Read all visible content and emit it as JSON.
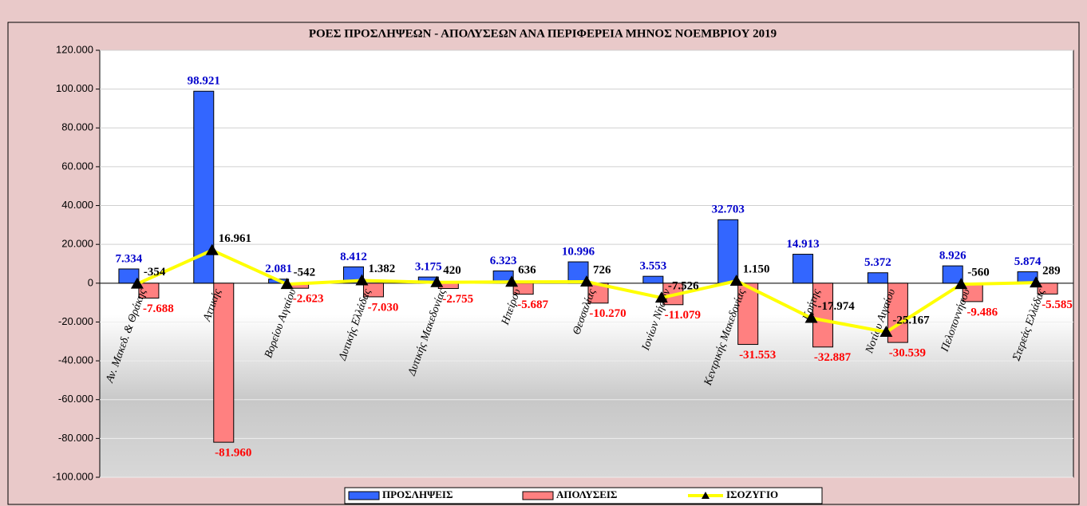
{
  "chart_data": {
    "type": "bar",
    "title": "ΡΟΕΣ ΠΡΟΣΛΗΨΕΩΝ - ΑΠΟΛΥΣΕΩΝ ΑΝΑ ΠΕΡΙΦΕΡΕΙΑ ΜΗΝΟΣ  ΝΟΕΜΒΡΙΟΥ  2019",
    "categories": [
      "Αν. Μακεδ. & Θράκης",
      "Αττικής",
      "Βορείου Αιγαίου",
      "Δυτικής Ελλάδας",
      "Δυτικής Μακεδονίας",
      "Ηπείρου",
      "Θεσσαλίας",
      "Ιονίων Νήσων",
      "Κεντρικής Μακεδονίας",
      "Κρήτης",
      "Νοτίου Αιγαίου",
      "Πελοποννήσου",
      "Στερεάς Ελλάδας"
    ],
    "series": [
      {
        "name": "ΠΡΟΣΛΗΨΕΙΣ",
        "type": "bar",
        "color": "#3366ff",
        "label_color": "#0000cc",
        "values": [
          7334,
          98921,
          2081,
          8412,
          3175,
          6323,
          10996,
          3553,
          32703,
          14913,
          5372,
          8926,
          5874
        ],
        "value_labels": [
          "7.334",
          "98.921",
          "2.081",
          "8.412",
          "3.175",
          "6.323",
          "10.996",
          "3.553",
          "32.703",
          "14.913",
          "5.372",
          "8.926",
          "5.874"
        ]
      },
      {
        "name": "ΑΠΟΛΥΣΕΙΣ",
        "type": "bar",
        "color": "#ff8080",
        "label_color": "#ff0000",
        "values": [
          -7688,
          -81960,
          -2623,
          -7030,
          -2755,
          -5687,
          -10270,
          -11079,
          -31553,
          -32887,
          -30539,
          -9486,
          -5585
        ],
        "value_labels": [
          "-7.688",
          "-81.960",
          "-2.623",
          "-7.030",
          "-2.755",
          "-5.687",
          "-10.270",
          "-11.079",
          "-31.553",
          "-32.887",
          "-30.539",
          "-9.486",
          "-5.585"
        ]
      },
      {
        "name": "ΙΣΟΖΥΓΙΟ",
        "type": "line",
        "color": "#ffff00",
        "label_color": "#000000",
        "values": [
          -354,
          16961,
          -542,
          1382,
          420,
          636,
          726,
          -7526,
          1150,
          -17974,
          -25167,
          -560,
          289
        ],
        "value_labels": [
          "-354",
          "16.961",
          "-542",
          "1.382",
          "420",
          "636",
          "726",
          "-7.526",
          "1.150",
          "-17.974",
          "-25.167",
          "-560",
          "289"
        ]
      }
    ],
    "ylim": [
      -100000,
      120000
    ],
    "yticks": [
      {
        "value": -100000,
        "label": "-100.000"
      },
      {
        "value": -80000,
        "label": "-80.000"
      },
      {
        "value": -60000,
        "label": "-60.000"
      },
      {
        "value": -40000,
        "label": "-40.000"
      },
      {
        "value": -20000,
        "label": "-20.000"
      },
      0,
      {
        "value": 20000,
        "label": "20.000"
      },
      {
        "value": 40000,
        "label": "40.000"
      },
      {
        "value": 60000,
        "label": "60.000"
      },
      {
        "value": 80000,
        "label": "80.000"
      },
      {
        "value": 100000,
        "label": "100.000"
      },
      {
        "value": 120000,
        "label": "120.000"
      }
    ],
    "grid": true,
    "legend": "bottom"
  }
}
